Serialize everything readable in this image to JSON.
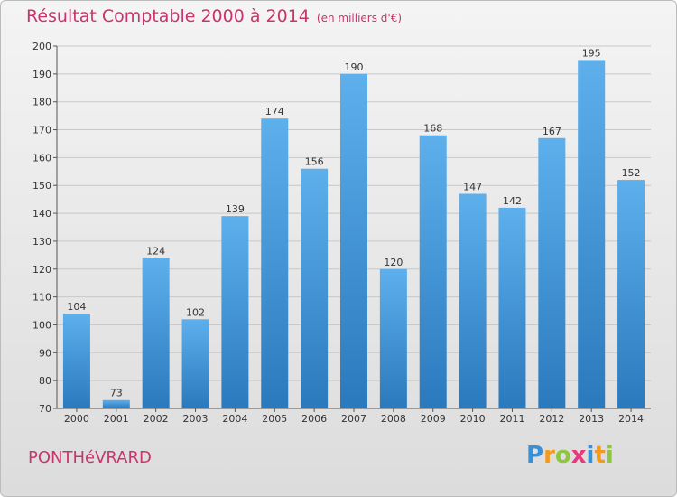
{
  "header": {
    "title": "Résultat Comptable 2000 à 2014",
    "subtitle": "(en milliers d'€)"
  },
  "footer": {
    "town": "PONTHéVRARD",
    "logo_letters": [
      "P",
      "r",
      "o",
      "x",
      "i",
      "t",
      "i"
    ],
    "logo_colors": [
      "#3a8fd9",
      "#f29a1d",
      "#8dc63f",
      "#e83a7a",
      "#3a8fd9",
      "#f29a1d",
      "#8dc63f"
    ]
  },
  "colors": {
    "bar_top": "#5db0ec",
    "bar_bottom": "#2a79bd",
    "title": "#c8356c",
    "axis_text": "#333333",
    "grid": "#c8c8c8"
  },
  "chart_data": {
    "type": "bar",
    "categories": [
      "2000",
      "2001",
      "2002",
      "2003",
      "2004",
      "2005",
      "2006",
      "2007",
      "2008",
      "2009",
      "2010",
      "2011",
      "2012",
      "2013",
      "2014"
    ],
    "values": [
      104,
      73,
      124,
      102,
      139,
      174,
      156,
      190,
      120,
      168,
      147,
      142,
      167,
      195,
      152
    ],
    "ylim": [
      70,
      200
    ],
    "yticks": [
      70,
      80,
      90,
      100,
      110,
      120,
      130,
      140,
      150,
      160,
      170,
      180,
      190,
      200
    ],
    "grid": true,
    "data_labels": true
  }
}
